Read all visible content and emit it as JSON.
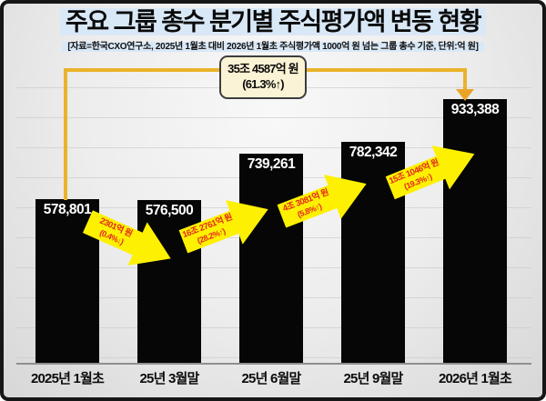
{
  "title": "주요 그룹 총수 분기별 주식평가액 변동 현황",
  "subtitle": "[자료=한국CXO연구소, 2025년 1월초 대비 2026년 1월초 주식평가액 1000억 원 넘는 그룹 총수 기준, 단위:억 원]",
  "chart_data": {
    "type": "bar",
    "title": "주요 그룹 총수 분기별 주식평가액 변동 현황",
    "categories": [
      "2025년 1월초",
      "25년 3월말",
      "25년 6월말",
      "25년 9월말",
      "2026년 1월초"
    ],
    "values": [
      578801,
      576500,
      739261,
      782342,
      933388
    ],
    "value_labels": [
      "578,801",
      "576,500",
      "739,261",
      "782,342",
      "933,388"
    ],
    "unit": "억 원",
    "ylim": [
      0,
      1000000
    ],
    "grid": "horizontal",
    "legend": "none",
    "bar_color": "#060606",
    "change_arrows": [
      {
        "line1": "2301억 원",
        "line2": "(0.4%↓)",
        "direction": "down"
      },
      {
        "line1": "16조 2761억 원",
        "line2": "(28.2%↑)",
        "direction": "up"
      },
      {
        "line1": "4조 3081억 원",
        "line2": "(5.8%↑)",
        "direction": "up"
      },
      {
        "line1": "15조 1046억 원",
        "line2": "(19.3%↑)",
        "direction": "up"
      }
    ],
    "total_change": {
      "line1": "35조 4587억 원",
      "line2": "(61.3%↑)",
      "from": "2025년 1월초",
      "to": "2026년 1월초"
    }
  },
  "colors": {
    "bar": "#060606",
    "bar_label": "#ffffff",
    "arrow_yellow": "#fdf101",
    "arrow_text_red": "#e4261f",
    "connector_gold": "#e9b32a",
    "callout_bg": "#fbf3d5",
    "callout_border": "#3d3d3d",
    "title_highlight": "#d9e8f7",
    "background": "#ededed",
    "frame_border": "#161616"
  }
}
